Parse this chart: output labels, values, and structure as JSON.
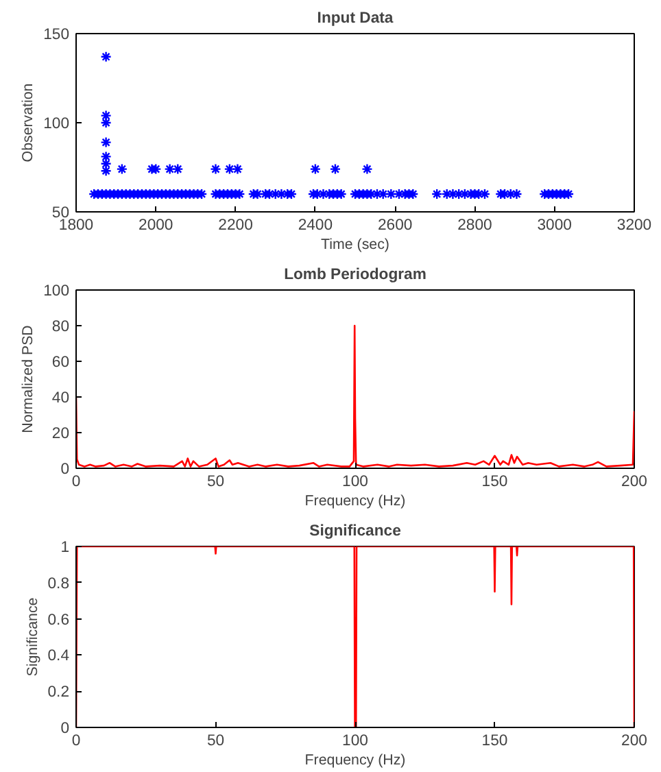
{
  "chart_data": [
    {
      "type": "scatter",
      "title": "Input Data",
      "xlabel": "Time (sec)",
      "ylabel": "Observation",
      "xlim": [
        1800,
        3200
      ],
      "ylim": [
        50,
        150
      ],
      "xticks": [
        1800,
        2000,
        2200,
        2400,
        2600,
        2800,
        3000,
        3200
      ],
      "yticks": [
        50,
        100,
        150
      ],
      "marker": "cross",
      "series": [
        {
          "color": "#0000ff",
          "x": [
            1845,
            1855,
            1865,
            1875,
            1885,
            1895,
            1905,
            1915,
            1925,
            1935,
            1945,
            1955,
            1965,
            1975,
            1985,
            1995,
            2005,
            2015,
            2025,
            2035,
            2045,
            2055,
            2065,
            2075,
            2085,
            2095,
            2105,
            2115,
            2150,
            2160,
            2170,
            2180,
            2190,
            2200,
            2210,
            2245,
            2255,
            2275,
            2285,
            2300,
            2315,
            2330,
            2340,
            2395,
            2405,
            2420,
            2435,
            2445,
            2455,
            2465,
            2500,
            2510,
            2520,
            2530,
            2540,
            2555,
            2570,
            2590,
            2610,
            2625,
            2635,
            2645,
            2705,
            2730,
            2745,
            2760,
            2775,
            2790,
            2800,
            2810,
            2825,
            2865,
            2875,
            2890,
            2905,
            2975,
            2985,
            2995,
            3005,
            3015,
            3025,
            3035
          ],
          "values": [
            60,
            60,
            60,
            60,
            60,
            60,
            60,
            60,
            60,
            60,
            60,
            60,
            60,
            60,
            60,
            60,
            60,
            60,
            60,
            60,
            60,
            60,
            60,
            60,
            60,
            60,
            60,
            60,
            60,
            60,
            60,
            60,
            60,
            60,
            60,
            60,
            60,
            60,
            60,
            60,
            60,
            60,
            60,
            60,
            60,
            60,
            60,
            60,
            60,
            60,
            60,
            60,
            60,
            60,
            60,
            60,
            60,
            60,
            60,
            60,
            60,
            60,
            60,
            60,
            60,
            60,
            60,
            60,
            60,
            60,
            60,
            60,
            60,
            60,
            60,
            60,
            60,
            60,
            60,
            60,
            60,
            60
          ]
        },
        {
          "color": "#0000ff",
          "x": [
            1915,
            1990,
            2000,
            2035,
            2055,
            2150,
            2185,
            2205,
            2400,
            2450,
            2530
          ],
          "values": [
            74,
            74,
            74,
            74,
            74,
            74,
            74,
            74,
            74,
            74,
            74
          ]
        },
        {
          "color": "#0000ff",
          "x": [
            1875,
            1875,
            1875,
            1875,
            1875,
            1875,
            1875
          ],
          "values": [
            137,
            104,
            100,
            89,
            81,
            77,
            73
          ]
        }
      ]
    },
    {
      "type": "line",
      "title": "Lomb Periodogram",
      "xlabel": "Frequency (Hz)",
      "ylabel": "Normalized PSD",
      "xlim": [
        0,
        200
      ],
      "ylim": [
        0,
        100
      ],
      "xticks": [
        0,
        50,
        100,
        150,
        200
      ],
      "yticks": [
        0,
        20,
        40,
        60,
        80,
        100
      ],
      "series": [
        {
          "color": "#ff0000",
          "x": [
            0,
            0.3,
            1,
            3,
            5,
            7,
            10,
            12,
            14,
            17,
            20,
            22,
            25,
            30,
            35,
            38,
            39,
            40,
            41,
            42,
            44,
            47,
            50,
            51,
            53,
            55,
            56,
            58,
            62,
            65,
            68,
            72,
            76,
            80,
            85,
            87,
            90,
            95,
            98,
            99.5,
            99.8,
            100,
            100.3,
            103,
            108,
            112,
            115,
            120,
            125,
            130,
            135,
            140,
            143,
            146,
            148,
            150,
            152,
            153,
            155,
            156,
            157,
            158,
            160,
            162,
            165,
            170,
            173,
            178,
            182,
            185,
            187,
            190,
            195,
            199.5,
            200
          ],
          "values": [
            40,
            5,
            2,
            1,
            2,
            1,
            1.5,
            3,
            1,
            2,
            1,
            2.5,
            1,
            1.5,
            1,
            4,
            1,
            5.5,
            1,
            4,
            1,
            2,
            5.5,
            1,
            2,
            4.5,
            2,
            3,
            1,
            2,
            1,
            2,
            1,
            1.5,
            3,
            1,
            2,
            1,
            1,
            4,
            80,
            28,
            2,
            1,
            2,
            1,
            2,
            1.5,
            2,
            1,
            1.5,
            3,
            2,
            4,
            2,
            7,
            2,
            4,
            2,
            7.5,
            3,
            6.5,
            2,
            3,
            2,
            3,
            1,
            2,
            1,
            2,
            3.5,
            1,
            1.5,
            2,
            32
          ]
        }
      ]
    },
    {
      "type": "line",
      "title": "Significance",
      "xlabel": "Frequency (Hz)",
      "ylabel": "Significance",
      "xlim": [
        0,
        200
      ],
      "ylim": [
        0,
        1
      ],
      "xticks": [
        0,
        50,
        100,
        150,
        200
      ],
      "yticks": [
        0,
        0.2,
        0.4,
        0.6,
        0.8,
        1
      ],
      "series": [
        {
          "color": "#ff0000",
          "x": [
            0,
            0.3,
            49.8,
            50,
            50.2,
            99.7,
            99.9,
            100.3,
            100.5,
            149.8,
            150,
            150.2,
            155.8,
            156,
            156.2,
            157.8,
            158,
            158.2,
            199.8,
            200
          ],
          "values": [
            0,
            1,
            1,
            0.96,
            1,
            1,
            0,
            0,
            1,
            1,
            0.75,
            1,
            1,
            0.68,
            1,
            1,
            0.95,
            1,
            1,
            0
          ]
        }
      ]
    }
  ]
}
